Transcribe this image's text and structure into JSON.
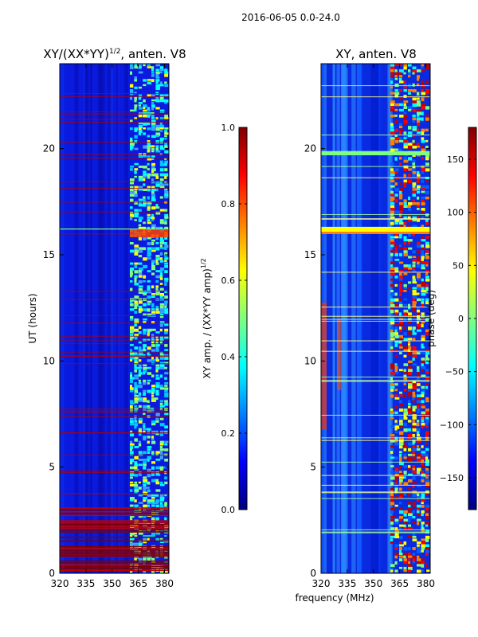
{
  "figure_title": "2016-06-05 0.0-24.0",
  "colors": {
    "jet": [
      "#00007f",
      "#0000ff",
      "#007fff",
      "#00ffff",
      "#7fff7f",
      "#ffff00",
      "#ff7f00",
      "#ff0000",
      "#7f0000"
    ]
  },
  "chart_data": [
    {
      "type": "heatmap",
      "title_main": "XY/(XX*YY)",
      "title_sup": "1/2",
      "title_rest": ", anten. V8",
      "xlabel": "",
      "ylabel": "UT (hours)",
      "xlim": [
        320,
        382.5
      ],
      "ylim": [
        0,
        24
      ],
      "xticks": [
        320,
        335,
        350,
        365,
        380
      ],
      "yticks": [
        0,
        5,
        10,
        15,
        20
      ],
      "colorbar": {
        "label_main": "XY amp. / (XX*YY amp)",
        "label_sup": "1/2",
        "range": [
          0.0,
          1.0
        ],
        "ticks": [
          "0.0",
          "0.2",
          "0.4",
          "0.6",
          "0.8",
          "1.0"
        ],
        "tick_values": [
          0.0,
          0.2,
          0.4,
          0.6,
          0.8,
          1.0
        ]
      }
    },
    {
      "type": "heatmap",
      "title_main": "XY, anten. V8",
      "xlabel": "frequency (MHz)",
      "ylabel": "",
      "xlim": [
        320,
        382.5
      ],
      "ylim": [
        0,
        24
      ],
      "xticks": [
        320,
        335,
        350,
        365,
        380
      ],
      "yticks": [
        0,
        5,
        10,
        15,
        20
      ],
      "colorbar": {
        "label_main": "phase (deg)",
        "range": [
          -180,
          180
        ],
        "ticks": [
          "150",
          "100",
          "50",
          "0",
          "−50",
          "−100",
          "−150"
        ],
        "tick_values": [
          150,
          100,
          50,
          0,
          -50,
          -100,
          -150
        ]
      }
    }
  ]
}
